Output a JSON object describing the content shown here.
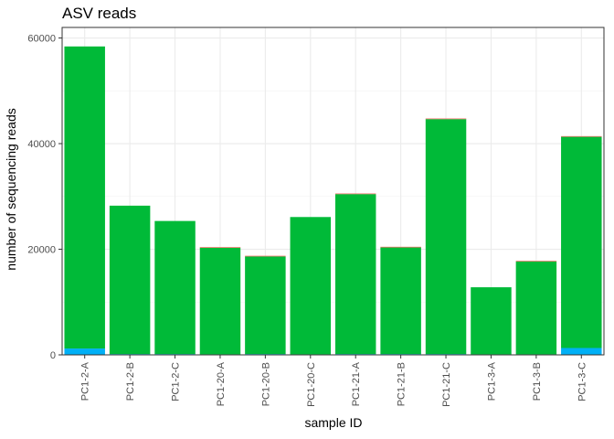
{
  "chart_data": {
    "type": "bar",
    "stacked": true,
    "title": "ASV reads",
    "xlabel": "sample ID",
    "ylabel": "number of sequencing reads",
    "ylim": [
      0,
      62000
    ],
    "yticks": [
      0,
      20000,
      40000,
      60000
    ],
    "grid": true,
    "categories": [
      "PC1-2-A",
      "PC1-2-B",
      "PC1-2-C",
      "PC1-20-A",
      "PC1-20-B",
      "PC1-20-C",
      "PC1-21-A",
      "PC1-21-B",
      "PC1-21-C",
      "PC1-3-A",
      "PC1-3-B",
      "PC1-3-C"
    ],
    "series": [
      {
        "color": "#00b0f6",
        "values": [
          1200,
          150,
          150,
          100,
          150,
          100,
          150,
          150,
          150,
          100,
          100,
          1300
        ]
      },
      {
        "color": "#00ba38",
        "values": [
          57200,
          28100,
          25200,
          20200,
          18500,
          26000,
          30300,
          20200,
          44500,
          12700,
          17600,
          40000
        ]
      },
      {
        "color": "#f8766d",
        "values": [
          0,
          0,
          0,
          120,
          120,
          0,
          120,
          120,
          120,
          0,
          120,
          120
        ]
      }
    ]
  }
}
